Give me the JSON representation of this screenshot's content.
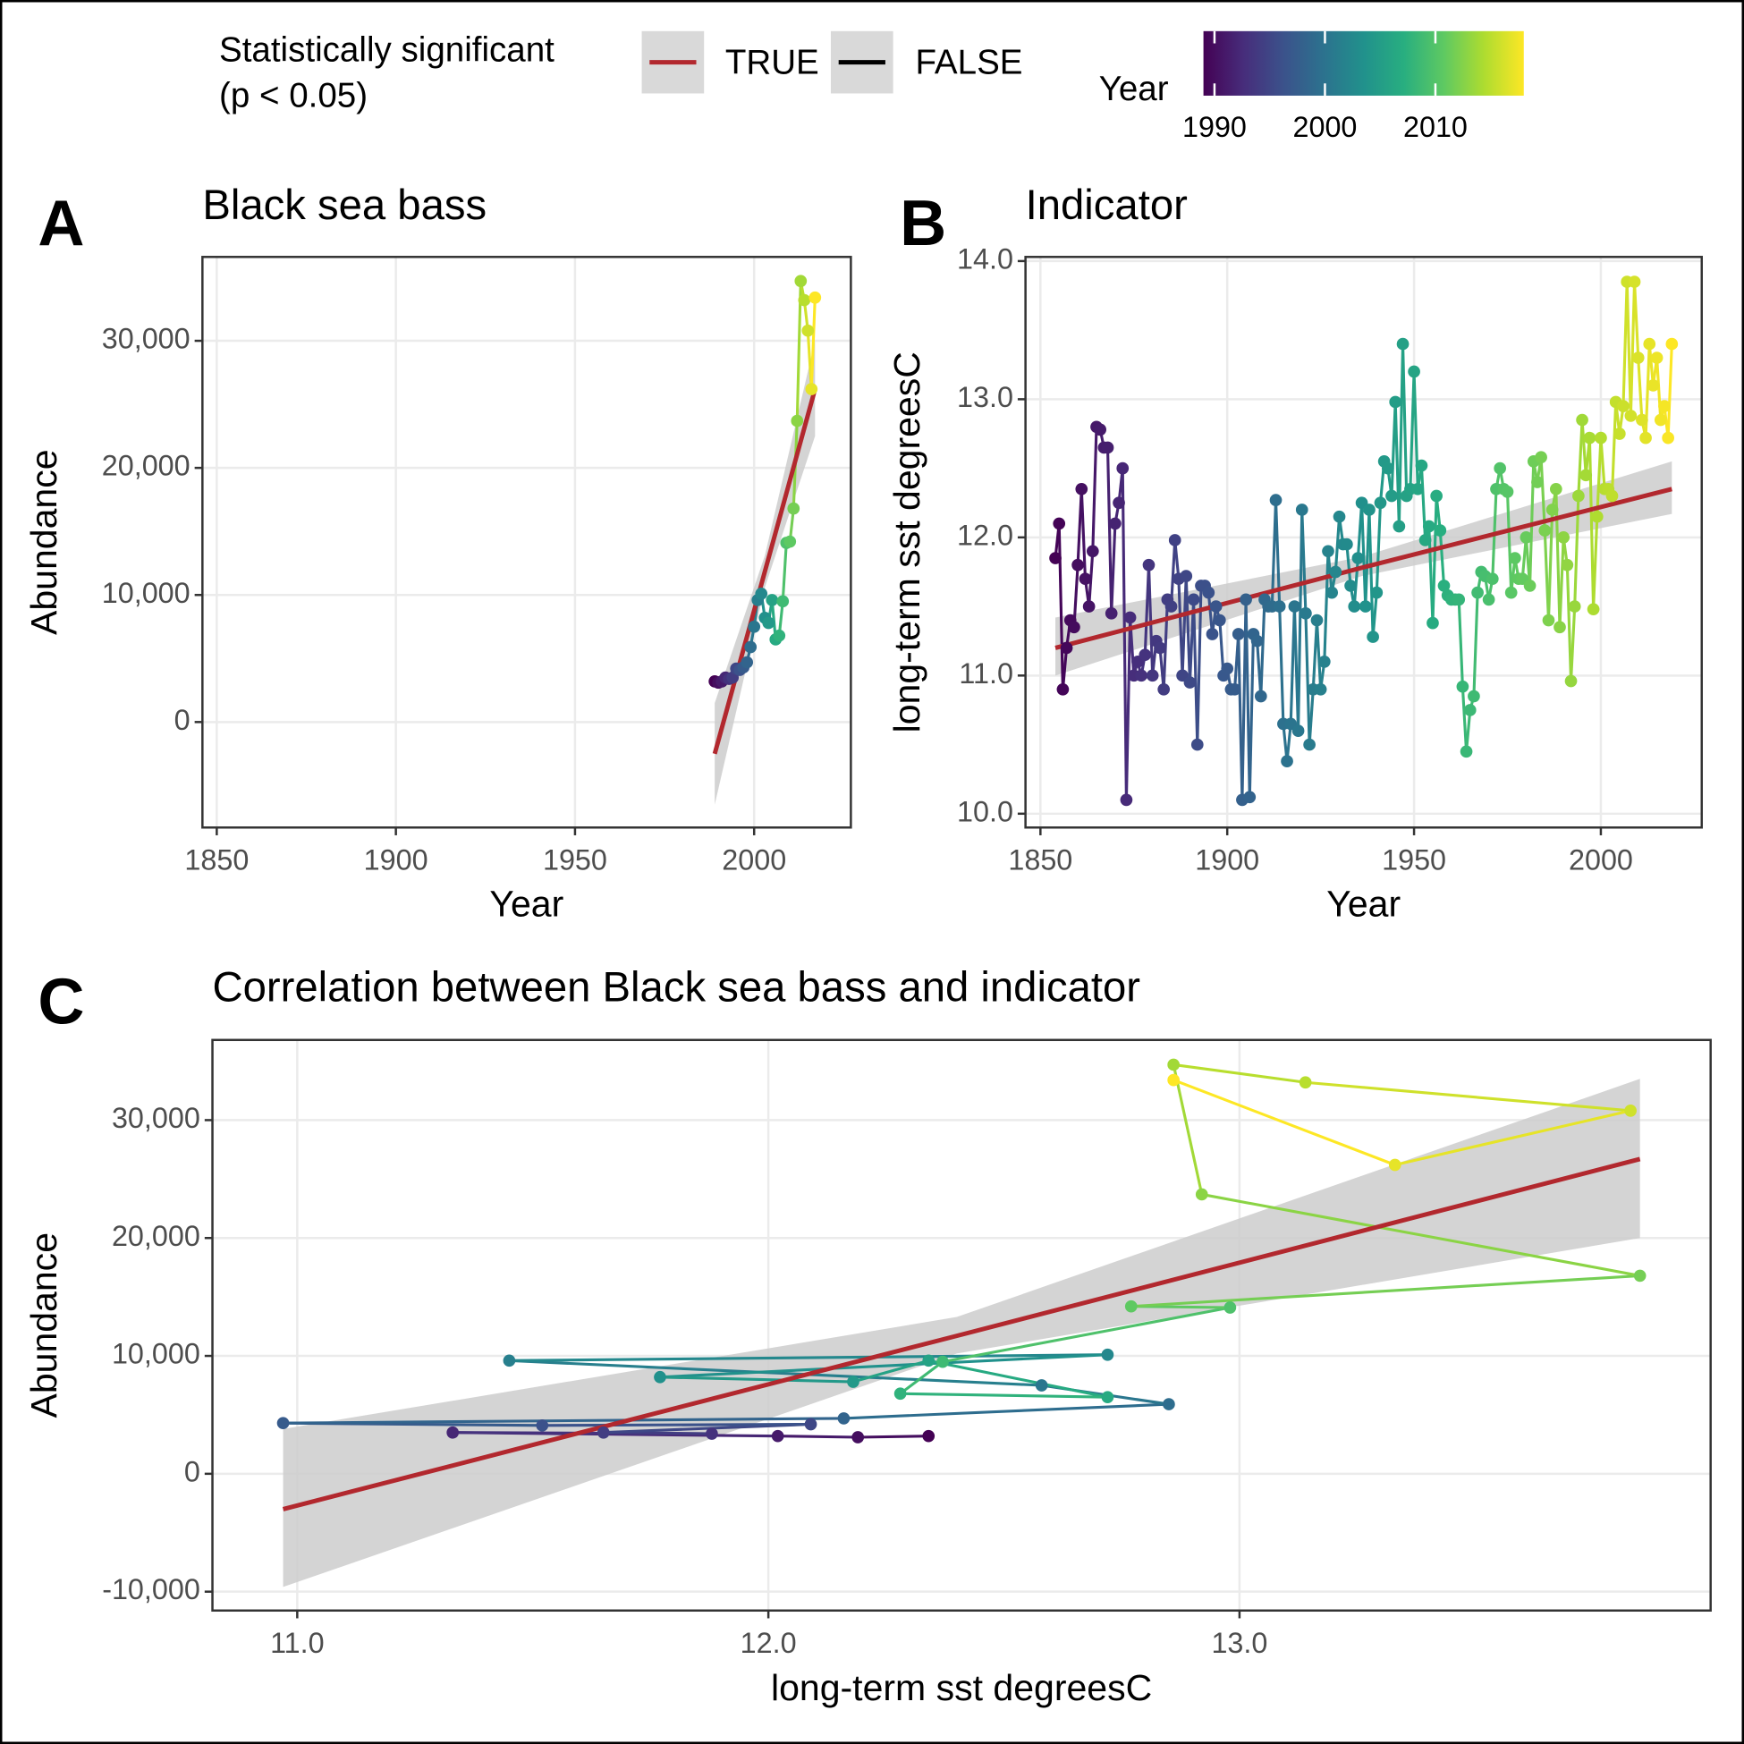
{
  "legend": {
    "title": [
      "Statistically significant",
      "(p < 0.05)"
    ],
    "entries": [
      {
        "name": "TRUE",
        "color": "#b2282e"
      },
      {
        "name": "FALSE",
        "color": "#000000"
      }
    ],
    "colorbar": {
      "title": "Year",
      "lim": [
        1989,
        2018
      ],
      "ticks": [
        1990,
        2000,
        2010
      ],
      "colors": [
        "#440154",
        "#472d7b",
        "#3b528b",
        "#2c728e",
        "#21918c",
        "#28ae80",
        "#5ec962",
        "#addc30",
        "#fde725"
      ]
    }
  },
  "chart_data": [
    {
      "type": "line",
      "tag": "A",
      "title": "Black sea bass",
      "x_label": "Year",
      "y_label": "Abundance",
      "x": [
        1989,
        1990,
        1991,
        1992,
        1993,
        1994,
        1995,
        1996,
        1997,
        1998,
        1999,
        2000,
        2001,
        2002,
        2003,
        2004,
        2005,
        2006,
        2007,
        2008,
        2009,
        2010,
        2011,
        2012,
        2013,
        2014,
        2015,
        2016,
        2017
      ],
      "values": [
        3200,
        3100,
        3200,
        3500,
        3400,
        3500,
        4200,
        4100,
        4300,
        4700,
        5900,
        7500,
        9600,
        10100,
        8200,
        7800,
        9600,
        6500,
        6800,
        9500,
        14100,
        14200,
        16800,
        23700,
        34700,
        33200,
        30800,
        26200,
        33400
      ],
      "xlim": [
        1846,
        2027
      ],
      "ylim": [
        -8300,
        36600
      ],
      "xticks": [
        1850,
        1900,
        1950,
        2000
      ],
      "yticks": [
        0,
        {
          "value": 10000,
          "label": "10,000"
        },
        {
          "value": 20000,
          "label": "20,000"
        },
        {
          "value": 30000,
          "label": "30,000"
        }
      ],
      "grid": true,
      "trend": {
        "x": [
          1989,
          2003,
          2017
        ],
        "values": [
          -2500,
          11850,
          26200
        ],
        "lower": [
          -6500,
          10600,
          22500
        ],
        "upper": [
          1500,
          13100,
          30000
        ],
        "color": "#b2282e",
        "band_color": "#cccccc"
      }
    },
    {
      "type": "line",
      "tag": "B",
      "title": "Indicator",
      "x_label": "Year",
      "y_label": "long-term sst degreesC",
      "x": [
        1854,
        1855,
        1856,
        1857,
        1858,
        1859,
        1860,
        1861,
        1862,
        1863,
        1864,
        1865,
        1866,
        1867,
        1868,
        1869,
        1870,
        1871,
        1872,
        1873,
        1874,
        1875,
        1876,
        1877,
        1878,
        1879,
        1880,
        1881,
        1882,
        1883,
        1884,
        1885,
        1886,
        1887,
        1888,
        1889,
        1890,
        1891,
        1892,
        1893,
        1894,
        1895,
        1896,
        1897,
        1898,
        1899,
        1900,
        1901,
        1902,
        1903,
        1904,
        1905,
        1906,
        1907,
        1908,
        1909,
        1910,
        1911,
        1912,
        1913,
        1914,
        1915,
        1916,
        1917,
        1918,
        1919,
        1920,
        1921,
        1922,
        1923,
        1924,
        1925,
        1926,
        1927,
        1928,
        1929,
        1930,
        1931,
        1932,
        1933,
        1934,
        1935,
        1936,
        1937,
        1938,
        1939,
        1940,
        1941,
        1942,
        1943,
        1944,
        1945,
        1946,
        1947,
        1948,
        1949,
        1950,
        1951,
        1952,
        1953,
        1954,
        1955,
        1956,
        1957,
        1958,
        1959,
        1960,
        1961,
        1962,
        1963,
        1964,
        1965,
        1966,
        1967,
        1968,
        1969,
        1970,
        1971,
        1972,
        1973,
        1974,
        1975,
        1976,
        1977,
        1978,
        1979,
        1980,
        1981,
        1982,
        1983,
        1984,
        1985,
        1986,
        1987,
        1988,
        1989,
        1990,
        1991,
        1992,
        1993,
        1994,
        1995,
        1996,
        1997,
        1998,
        1999,
        2000,
        2001,
        2002,
        2003,
        2004,
        2005,
        2006,
        2007,
        2008,
        2009,
        2010,
        2011,
        2012,
        2013,
        2014,
        2015,
        2016,
        2017,
        2018,
        2019
      ],
      "values": [
        11.85,
        12.1,
        10.9,
        11.2,
        11.4,
        11.35,
        11.8,
        12.35,
        11.7,
        11.5,
        11.9,
        12.8,
        12.78,
        12.65,
        12.65,
        11.45,
        12.1,
        12.25,
        12.5,
        10.1,
        11.42,
        11.0,
        11.1,
        11.0,
        11.15,
        11.8,
        11.0,
        11.25,
        11.2,
        10.9,
        11.55,
        11.5,
        11.98,
        11.7,
        11.0,
        11.72,
        10.95,
        11.55,
        10.5,
        11.65,
        11.65,
        11.6,
        11.3,
        11.5,
        11.4,
        11.0,
        11.05,
        10.9,
        10.9,
        11.3,
        10.1,
        11.55,
        10.12,
        11.3,
        11.25,
        10.85,
        11.55,
        11.5,
        11.5,
        12.27,
        11.5,
        10.65,
        10.38,
        10.65,
        11.5,
        10.6,
        12.2,
        11.45,
        10.5,
        10.9,
        11.4,
        10.9,
        11.1,
        11.9,
        11.6,
        11.75,
        12.15,
        11.95,
        11.95,
        11.65,
        11.5,
        11.85,
        12.25,
        11.5,
        12.2,
        11.28,
        11.6,
        12.25,
        12.55,
        12.5,
        12.3,
        12.98,
        12.08,
        13.4,
        12.3,
        12.35,
        13.2,
        12.35,
        12.52,
        11.98,
        12.08,
        11.38,
        12.3,
        12.05,
        11.65,
        11.58,
        11.55,
        11.55,
        11.55,
        10.92,
        10.45,
        10.75,
        10.85,
        11.6,
        11.75,
        11.72,
        11.55,
        11.7,
        12.35,
        12.5,
        12.35,
        12.33,
        11.6,
        11.85,
        11.7,
        11.7,
        12.0,
        11.65,
        12.55,
        12.4,
        12.58,
        12.05,
        11.4,
        12.2,
        12.35,
        11.35,
        12.0,
        11.8,
        10.96,
        11.5,
        12.3,
        12.85,
        12.45,
        12.72,
        11.48,
        12.15,
        12.72,
        12.35,
        12.35,
        12.3,
        12.98,
        12.75,
        12.95,
        13.85,
        12.88,
        13.85,
        13.3,
        12.85,
        12.72,
        13.4,
        13.1,
        13.3,
        12.85,
        12.95,
        12.72,
        13.4
      ],
      "xlim": [
        1846,
        2027
      ],
      "ylim": [
        9.9,
        14.03
      ],
      "xticks": [
        1850,
        1900,
        1950,
        2000
      ],
      "yticks": [
        {
          "value": 10,
          "label": "10.0"
        },
        {
          "value": 11,
          "label": "11.0"
        },
        {
          "value": 12,
          "label": "12.0"
        },
        {
          "value": 13,
          "label": "13.0"
        },
        {
          "value": 14,
          "label": "14.0"
        }
      ],
      "grid": true,
      "trend": {
        "x": [
          1854,
          1936,
          2019
        ],
        "values": [
          11.2,
          11.78,
          12.35
        ],
        "lower": [
          11.0,
          11.72,
          12.17
        ],
        "upper": [
          11.42,
          11.86,
          12.55
        ],
        "color": "#b2282e",
        "band_color": "#cccccc"
      }
    },
    {
      "type": "line",
      "tag": "C",
      "title": "Correlation between Black sea bass and indicator",
      "x_label": "long-term sst degreesC",
      "y_label": "Abundance",
      "x": [
        12.34,
        12.19,
        12.02,
        11.33,
        11.88,
        11.65,
        12.09,
        11.52,
        10.97,
        12.16,
        12.85,
        12.58,
        11.45,
        12.72,
        11.77,
        12.18,
        12.34,
        12.72,
        12.28,
        12.37,
        12.98,
        12.77,
        13.85,
        12.92,
        12.86,
        13.14,
        13.83,
        13.33,
        12.86
      ],
      "values": [
        3200,
        3100,
        3200,
        3500,
        3400,
        3500,
        4200,
        4100,
        4300,
        4700,
        5900,
        7500,
        9600,
        10100,
        8200,
        7800,
        9600,
        6500,
        6800,
        9500,
        14100,
        14200,
        16800,
        23700,
        34700,
        33200,
        30800,
        26200,
        33400
      ],
      "years": [
        1989,
        1990,
        1991,
        1992,
        1993,
        1994,
        1995,
        1996,
        1997,
        1998,
        1999,
        2000,
        2001,
        2002,
        2003,
        2004,
        2005,
        2006,
        2007,
        2008,
        2009,
        2010,
        2011,
        2012,
        2013,
        2014,
        2015,
        2016,
        2017
      ],
      "xlim": [
        10.82,
        14.0
      ],
      "ylim": [
        -11600,
        36800
      ],
      "xticks": [
        {
          "value": 11,
          "label": "11.0"
        },
        {
          "value": 12,
          "label": "12.0"
        },
        {
          "value": 13,
          "label": "13.0"
        }
      ],
      "yticks": [
        {
          "value": -10000,
          "label": "-10,000"
        },
        0,
        {
          "value": 10000,
          "label": "10,000"
        },
        {
          "value": 20000,
          "label": "20,000"
        },
        {
          "value": 30000,
          "label": "30,000"
        }
      ],
      "grid": true,
      "trend": {
        "x": [
          10.97,
          12.4,
          13.85
        ],
        "values": [
          -3000,
          11700,
          26700
        ],
        "lower": [
          -9600,
          10200,
          20000
        ],
        "upper": [
          3800,
          13300,
          33500
        ],
        "color": "#b2282e",
        "band_color": "#cccccc"
      }
    }
  ]
}
